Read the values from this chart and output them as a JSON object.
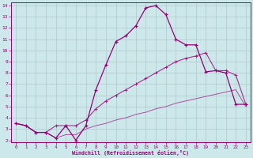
{
  "xlabel": "Windchill (Refroidissement éolien,°C)",
  "bg_color": "#cce8ea",
  "line_color": "#990077",
  "grid_color": "#b0c8ca",
  "xlim": [
    -0.5,
    23.5
  ],
  "ylim": [
    1.8,
    14.3
  ],
  "xticks": [
    0,
    1,
    2,
    3,
    4,
    5,
    6,
    7,
    8,
    9,
    10,
    11,
    12,
    13,
    14,
    15,
    16,
    17,
    18,
    19,
    20,
    21,
    22,
    23
  ],
  "yticks": [
    2,
    3,
    4,
    5,
    6,
    7,
    8,
    9,
    10,
    11,
    12,
    13,
    14
  ],
  "curve1_x": [
    0,
    1,
    2,
    3,
    4,
    5,
    6,
    7,
    8,
    9,
    10,
    11,
    12,
    13,
    14,
    15,
    16,
    17,
    18,
    19,
    20,
    21,
    22,
    23
  ],
  "curve1_y": [
    3.5,
    3.3,
    2.7,
    2.7,
    2.2,
    3.3,
    2.0,
    3.3,
    6.5,
    8.7,
    10.8,
    11.3,
    12.2,
    13.8,
    14.0,
    13.2,
    11.0,
    10.5,
    10.5,
    8.1,
    8.2,
    8.0,
    5.2,
    5.2
  ],
  "curve2_x": [
    0,
    1,
    2,
    3,
    4,
    5,
    6,
    7,
    8,
    9,
    10,
    11,
    12,
    13,
    14,
    15,
    16,
    17,
    18,
    19,
    20,
    21,
    22,
    23
  ],
  "curve2_y": [
    3.5,
    3.3,
    2.7,
    2.7,
    3.3,
    3.3,
    3.3,
    3.8,
    4.8,
    5.5,
    6.0,
    6.5,
    7.0,
    7.5,
    8.0,
    8.5,
    9.0,
    9.3,
    9.5,
    9.8,
    8.2,
    8.2,
    7.8,
    5.2
  ],
  "curve3_x": [
    0,
    1,
    2,
    3,
    4,
    5,
    6,
    7,
    8,
    9,
    10,
    11,
    12,
    13,
    14,
    15,
    16,
    17,
    18,
    19,
    20,
    21,
    22,
    23
  ],
  "curve3_y": [
    3.5,
    3.3,
    2.7,
    2.7,
    2.2,
    2.5,
    2.5,
    3.0,
    3.3,
    3.5,
    3.8,
    4.0,
    4.3,
    4.5,
    4.8,
    5.0,
    5.3,
    5.5,
    5.7,
    5.9,
    6.1,
    6.3,
    6.5,
    5.0
  ]
}
